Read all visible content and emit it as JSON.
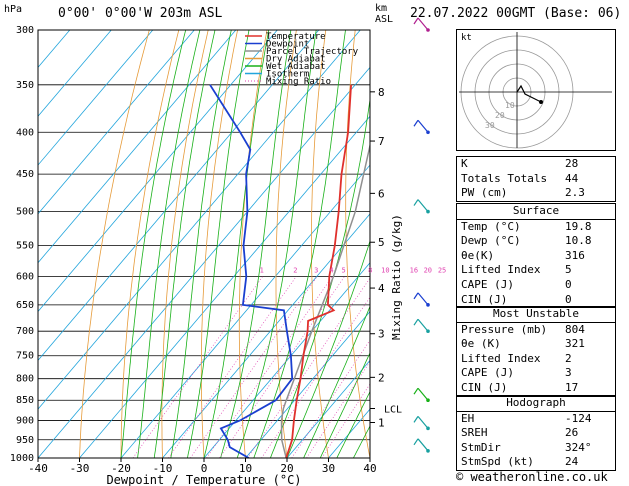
{
  "header": {
    "left": "0°00'  0°00'W  203m  ASL",
    "right": "22.07.2022  00GMT  (Base: 06)"
  },
  "chart_data": {
    "type": "skewt",
    "yaxis_label": "hPa",
    "xlabel": "Dewpoint / Temperature (°C)",
    "right_label_km": "km\nASL",
    "mixing_label": "Mixing Ratio (g/kg)",
    "pressure_ticks": [
      300,
      350,
      400,
      450,
      500,
      550,
      600,
      650,
      700,
      750,
      800,
      850,
      900,
      950,
      1000
    ],
    "temp_ticks": [
      -40,
      -30,
      -20,
      -10,
      0,
      10,
      20,
      30,
      40
    ],
    "km_ticks": [
      {
        "km": "8",
        "p": 357
      },
      {
        "km": "7",
        "p": 410
      },
      {
        "km": "6",
        "p": 475
      },
      {
        "km": "5",
        "p": 545
      },
      {
        "km": "4",
        "p": 620
      },
      {
        "km": "3",
        "p": 705
      },
      {
        "km": "2",
        "p": 797
      },
      {
        "km": "1",
        "p": 905
      }
    ],
    "lcl": {
      "label": "LCL",
      "p": 870
    },
    "mixing_ratio_labels": [
      "1",
      "2",
      "3",
      "4",
      "5",
      "8",
      "10",
      "16",
      "20",
      "25"
    ],
    "legend": [
      {
        "name": "Temperature",
        "color": "#e0302c"
      },
      {
        "name": "Dewpoint",
        "color": "#1a3fd0"
      },
      {
        "name": "Parcel Trajectory",
        "color": "#909090"
      },
      {
        "name": "Dry Adiabat",
        "color": "#e69b3a"
      },
      {
        "name": "Wet Adiabat",
        "color": "#18b018"
      },
      {
        "name": "Isotherm",
        "color": "#22a5dc"
      },
      {
        "name": "Mixing Ratio",
        "color": "#e040b0"
      }
    ],
    "temperature": [
      [
        1000,
        19.8
      ],
      [
        950,
        17.5
      ],
      [
        900,
        14
      ],
      [
        850,
        10.5
      ],
      [
        800,
        7
      ],
      [
        750,
        3
      ],
      [
        700,
        -1
      ],
      [
        680,
        -3
      ],
      [
        660,
        1
      ],
      [
        650,
        -1.5
      ],
      [
        600,
        -7
      ],
      [
        550,
        -12
      ],
      [
        500,
        -18
      ],
      [
        450,
        -25
      ],
      [
        400,
        -32
      ],
      [
        350,
        -41
      ]
    ],
    "dewpoint": [
      [
        1000,
        10.8
      ],
      [
        970,
        4
      ],
      [
        950,
        2
      ],
      [
        920,
        -2
      ],
      [
        900,
        1
      ],
      [
        850,
        5.5
      ],
      [
        800,
        5
      ],
      [
        750,
        0
      ],
      [
        700,
        -6
      ],
      [
        660,
        -11
      ],
      [
        650,
        -22
      ],
      [
        600,
        -27
      ],
      [
        550,
        -34
      ],
      [
        500,
        -40
      ],
      [
        450,
        -48
      ],
      [
        420,
        -52
      ],
      [
        400,
        -58
      ],
      [
        350,
        -75
      ]
    ],
    "parcel": [
      [
        1000,
        19.8
      ],
      [
        950,
        15
      ],
      [
        900,
        11
      ],
      [
        870,
        9
      ],
      [
        850,
        8
      ],
      [
        800,
        5.5
      ],
      [
        700,
        0
      ],
      [
        600,
        -6
      ],
      [
        500,
        -14
      ],
      [
        400,
        -26
      ],
      [
        300,
        -42
      ]
    ]
  },
  "indices": {
    "K": "28",
    "Totals Totals": "44",
    "PW (cm)": "2.3"
  },
  "surface": {
    "title": "Surface",
    "rows": [
      [
        "Temp (°C)",
        "19.8"
      ],
      [
        "Dewp (°C)",
        "10.8"
      ],
      [
        "θe(K)",
        "316"
      ],
      [
        "Lifted Index",
        "5"
      ],
      [
        "CAPE (J)",
        "0"
      ],
      [
        "CIN (J)",
        "0"
      ]
    ]
  },
  "most_unstable": {
    "title": "Most Unstable",
    "rows": [
      [
        "Pressure (mb)",
        "804"
      ],
      [
        "θe (K)",
        "321"
      ],
      [
        "Lifted Index",
        "2"
      ],
      [
        "CAPE (J)",
        "3"
      ],
      [
        "CIN (J)",
        "17"
      ]
    ]
  },
  "hodograph_table": {
    "title": "Hodograph",
    "rows": [
      [
        "EH",
        "-124"
      ],
      [
        "SREH",
        "26"
      ],
      [
        "StmDir",
        "324°"
      ],
      [
        "StmSpd (kt)",
        "24"
      ]
    ]
  },
  "hodograph": {
    "label": "kt",
    "ring_labels": [
      "10",
      "20",
      "30"
    ]
  },
  "footer": "© weatheronline.co.uk"
}
